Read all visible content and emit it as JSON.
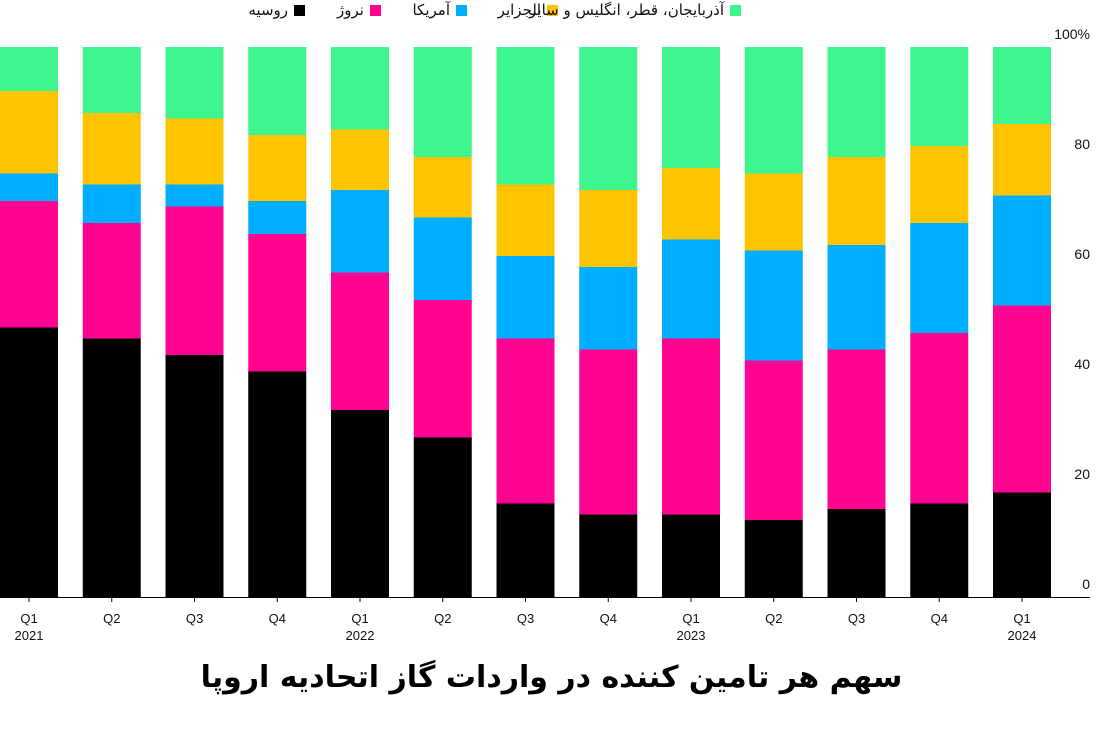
{
  "chart_data": {
    "type": "bar",
    "stacked": true,
    "title": "سهم هر تامین کننده در واردات گاز اتحادیه اروپا",
    "xlabel": "",
    "ylabel": "",
    "ylim": [
      0,
      100
    ],
    "y_ticks": [
      {
        "value": 0,
        "label": "0"
      },
      {
        "value": 20,
        "label": "20"
      },
      {
        "value": 40,
        "label": "40"
      },
      {
        "value": 60,
        "label": "60"
      },
      {
        "value": 80,
        "label": "80"
      },
      {
        "value": 100,
        "label": "100%"
      }
    ],
    "grid": false,
    "legend_position": "top-right",
    "categories": [
      {
        "quarter": "Q1",
        "year": "2021"
      },
      {
        "quarter": "Q2",
        "year": ""
      },
      {
        "quarter": "Q3",
        "year": ""
      },
      {
        "quarter": "Q4",
        "year": ""
      },
      {
        "quarter": "Q1",
        "year": "2022"
      },
      {
        "quarter": "Q2",
        "year": ""
      },
      {
        "quarter": "Q3",
        "year": ""
      },
      {
        "quarter": "Q4",
        "year": ""
      },
      {
        "quarter": "Q1",
        "year": "2023"
      },
      {
        "quarter": "Q2",
        "year": ""
      },
      {
        "quarter": "Q3",
        "year": ""
      },
      {
        "quarter": "Q4",
        "year": ""
      },
      {
        "quarter": "Q1",
        "year": "2024"
      }
    ],
    "series": [
      {
        "name": "روسیه",
        "color": "#000000",
        "values": [
          49,
          47,
          44,
          41,
          34,
          29,
          17,
          15,
          15,
          14,
          16,
          17,
          19
        ]
      },
      {
        "name": "نروژ",
        "color": "#ff0391",
        "values": [
          23,
          21,
          27,
          25,
          25,
          25,
          30,
          30,
          32,
          29,
          29,
          31,
          34
        ]
      },
      {
        "name": "آمریکا",
        "color": "#00aeff",
        "values": [
          5,
          7,
          4,
          6,
          15,
          15,
          15,
          15,
          18,
          20,
          19,
          20,
          20
        ]
      },
      {
        "name": "الجزایر",
        "color": "#ffc400",
        "values": [
          15,
          13,
          12,
          12,
          11,
          11,
          13,
          14,
          13,
          14,
          16,
          14,
          13
        ]
      },
      {
        "name": "آذربایجان، قطر، انگلیس و سایر",
        "color": "#3ef68e",
        "values": [
          8,
          12,
          13,
          16,
          15,
          20,
          25,
          26,
          22,
          23,
          20,
          18,
          14
        ]
      }
    ]
  }
}
